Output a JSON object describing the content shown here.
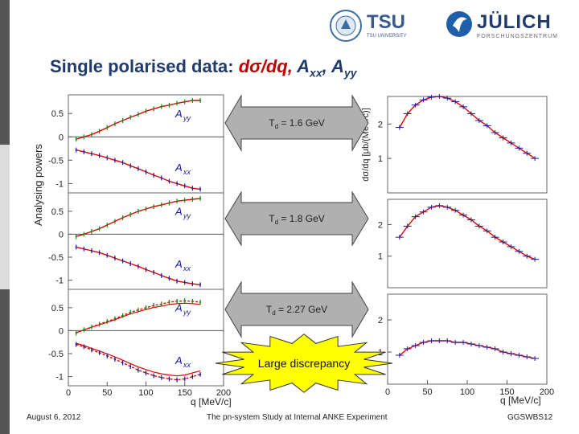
{
  "slide": {
    "title_plain": "Single polarised data: ",
    "title_red": "dσ/dq, ",
    "title_axx": "A",
    "title_axx_sub": "xx",
    "title_comma": ", ",
    "title_ayy": "A",
    "title_ayy_sub": "yy",
    "footer_date": "August 6, 2012",
    "footer_center": "The pn-system Study at Internal ANKE Experiment",
    "footer_right": "GGSWBS12",
    "logo_tsu": "TSU",
    "logo_tsu_sub": "TSU UNIVERSITY",
    "logo_julich": "JÜLICH",
    "logo_julich_sub": "FORSCHUNGSZENTRUM"
  },
  "arrows": [
    {
      "label": "T",
      "sub": "d",
      "value": " = 1.6 GeV"
    },
    {
      "label": "T",
      "sub": "d",
      "value": " = 1.8 GeV"
    },
    {
      "label": "T",
      "sub": "d",
      "value": " = 2.27 GeV"
    }
  ],
  "callout": {
    "text": "Large discrepancy",
    "color": "#ffff00"
  },
  "colors": {
    "curve": "#e00000",
    "data_blue": "#1a1aa0",
    "data_green": "#0a8a0a",
    "arrow_gray": "#b0b0b0"
  },
  "chart_data": [
    {
      "type": "scatter",
      "panel": "analysing-powers",
      "ylabel": "Analysing powers",
      "xlabel": "q [MeV/c]",
      "xlim": [
        0,
        200
      ],
      "ylim": [
        -1.2,
        0.9
      ],
      "xticks": [
        "0",
        "50",
        "100",
        "150",
        "200"
      ],
      "yticks": [
        "0.5",
        "0",
        "-0.5",
        "-1"
      ],
      "subpanels": [
        {
          "energy": "1.6 GeV",
          "series": [
            {
              "name": "Ayy",
              "x": [
                10,
                20,
                30,
                40,
                50,
                60,
                70,
                80,
                90,
                100,
                110,
                120,
                130,
                140,
                150,
                160,
                170
              ],
              "y": [
                -0.05,
                0.0,
                0.05,
                0.12,
                0.2,
                0.28,
                0.35,
                0.42,
                0.48,
                0.55,
                0.6,
                0.65,
                0.68,
                0.72,
                0.75,
                0.78,
                0.78
              ]
            },
            {
              "name": "Axx",
              "x": [
                10,
                20,
                30,
                40,
                50,
                60,
                70,
                80,
                90,
                100,
                110,
                120,
                130,
                140,
                150,
                160,
                170
              ],
              "y": [
                -0.28,
                -0.32,
                -0.36,
                -0.4,
                -0.45,
                -0.5,
                -0.55,
                -0.62,
                -0.68,
                -0.75,
                -0.82,
                -0.88,
                -0.95,
                -1.0,
                -1.05,
                -1.1,
                -1.12
              ]
            }
          ]
        },
        {
          "energy": "1.8 GeV",
          "series": [
            {
              "name": "Ayy",
              "x": [
                10,
                20,
                30,
                40,
                50,
                60,
                70,
                80,
                90,
                100,
                110,
                120,
                130,
                140,
                150,
                160,
                170
              ],
              "y": [
                -0.05,
                0.0,
                0.06,
                0.12,
                0.2,
                0.28,
                0.36,
                0.43,
                0.5,
                0.55,
                0.6,
                0.64,
                0.68,
                0.72,
                0.74,
                0.76,
                0.78
              ]
            },
            {
              "name": "Axx",
              "x": [
                10,
                20,
                30,
                40,
                50,
                60,
                70,
                80,
                90,
                100,
                110,
                120,
                130,
                140,
                150,
                160,
                170
              ],
              "y": [
                -0.28,
                -0.32,
                -0.36,
                -0.4,
                -0.46,
                -0.52,
                -0.58,
                -0.64,
                -0.7,
                -0.77,
                -0.83,
                -0.9,
                -0.96,
                -1.02,
                -1.05,
                -1.08,
                -1.1
              ]
            }
          ]
        },
        {
          "energy": "2.27 GeV",
          "series": [
            {
              "name": "Ayy",
              "x": [
                10,
                20,
                30,
                40,
                50,
                60,
                70,
                80,
                90,
                100,
                110,
                120,
                130,
                140,
                150,
                160,
                170
              ],
              "y": [
                -0.05,
                0.02,
                0.08,
                0.14,
                0.2,
                0.26,
                0.33,
                0.4,
                0.45,
                0.5,
                0.55,
                0.58,
                0.62,
                0.64,
                0.65,
                0.64,
                0.62
              ]
            },
            {
              "name": "Axx",
              "x": [
                10,
                20,
                30,
                40,
                50,
                60,
                70,
                80,
                90,
                100,
                110,
                120,
                130,
                140,
                150,
                160,
                170
              ],
              "y": [
                -0.3,
                -0.35,
                -0.42,
                -0.48,
                -0.55,
                -0.62,
                -0.7,
                -0.78,
                -0.86,
                -0.92,
                -0.98,
                -1.02,
                -1.05,
                -1.07,
                -1.05,
                -1.0,
                -0.95
              ]
            }
          ]
        }
      ]
    },
    {
      "type": "scatter",
      "panel": "cross-section",
      "ylabel": "dσ/dq [μb/(MeV/c)]",
      "xlabel": "q [MeV/c]",
      "xlim": [
        0,
        200
      ],
      "ylim": [
        0,
        2.8
      ],
      "xticks": [
        "0",
        "50",
        "100",
        "150",
        "200"
      ],
      "yticks": [
        "2",
        "1"
      ],
      "subpanels": [
        {
          "energy": "1.6 GeV",
          "x": [
            15,
            25,
            35,
            45,
            55,
            65,
            75,
            85,
            95,
            105,
            115,
            125,
            135,
            145,
            155,
            165,
            175,
            185
          ],
          "y": [
            1.9,
            2.3,
            2.55,
            2.7,
            2.78,
            2.8,
            2.75,
            2.65,
            2.5,
            2.3,
            2.1,
            1.95,
            1.75,
            1.6,
            1.45,
            1.3,
            1.15,
            1.0
          ]
        },
        {
          "energy": "1.8 GeV",
          "x": [
            15,
            25,
            35,
            45,
            55,
            65,
            75,
            85,
            95,
            105,
            115,
            125,
            135,
            145,
            155,
            165,
            175,
            185
          ],
          "y": [
            1.6,
            1.95,
            2.25,
            2.4,
            2.55,
            2.6,
            2.55,
            2.45,
            2.3,
            2.15,
            1.95,
            1.8,
            1.6,
            1.45,
            1.3,
            1.15,
            1.0,
            0.9
          ]
        },
        {
          "energy": "2.27 GeV",
          "x": [
            15,
            25,
            35,
            45,
            55,
            65,
            75,
            85,
            95,
            105,
            115,
            125,
            135,
            145,
            155,
            165,
            175,
            185
          ],
          "y": [
            0.9,
            1.1,
            1.2,
            1.3,
            1.35,
            1.35,
            1.35,
            1.3,
            1.3,
            1.25,
            1.2,
            1.15,
            1.1,
            1.0,
            0.95,
            0.9,
            0.85,
            0.8
          ]
        }
      ]
    }
  ]
}
